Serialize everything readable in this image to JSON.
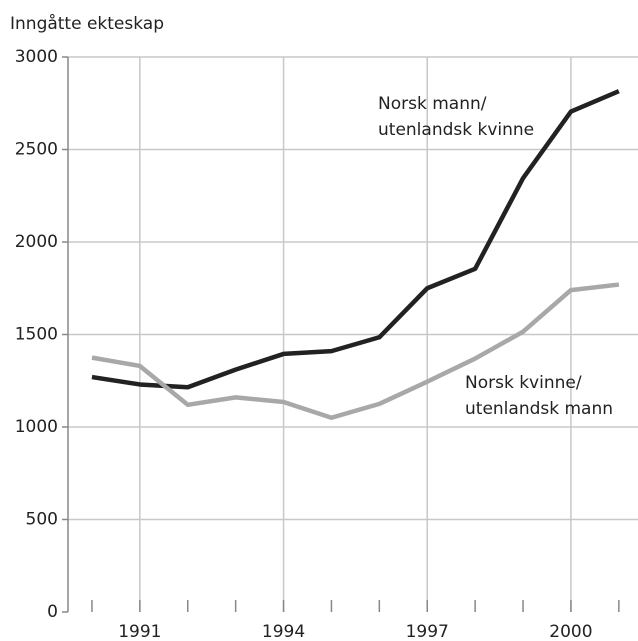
{
  "chart_data": {
    "type": "line",
    "y_label": "Inngåtte ekteskap",
    "x": [
      1990,
      1991,
      1992,
      1993,
      1994,
      1995,
      1996,
      1997,
      1998,
      1999,
      2000,
      2001
    ],
    "series": [
      {
        "name": "Norsk mann/utenlandsk kvinne",
        "color": "#222222",
        "values": [
          1270,
          1230,
          1215,
          1310,
          1395,
          1410,
          1485,
          1750,
          1855,
          2345,
          2705,
          2815
        ]
      },
      {
        "name": "Norsk kvinne/utenlandsk mann",
        "color": "#a8a8a8",
        "values": [
          1375,
          1330,
          1120,
          1160,
          1135,
          1050,
          1125,
          1245,
          1370,
          1515,
          1740,
          1770
        ]
      }
    ],
    "annotations": [
      [
        "Norsk mann/",
        "utenlandsk kvinne"
      ],
      [
        "Norsk kvinne/",
        "utenlandsk mann"
      ]
    ],
    "xlim": [
      1989.5,
      2001.4
    ],
    "xticks": [
      1991,
      1994,
      1997,
      2000
    ],
    "minor_xticks": [
      1990,
      1991,
      1992,
      1993,
      1994,
      1995,
      1996,
      1997,
      1998,
      1999,
      2000,
      2001
    ],
    "ylim": [
      0,
      3000
    ],
    "yticks": [
      0,
      500,
      1000,
      1500,
      2000,
      2500,
      3000
    ],
    "grid": true
  }
}
